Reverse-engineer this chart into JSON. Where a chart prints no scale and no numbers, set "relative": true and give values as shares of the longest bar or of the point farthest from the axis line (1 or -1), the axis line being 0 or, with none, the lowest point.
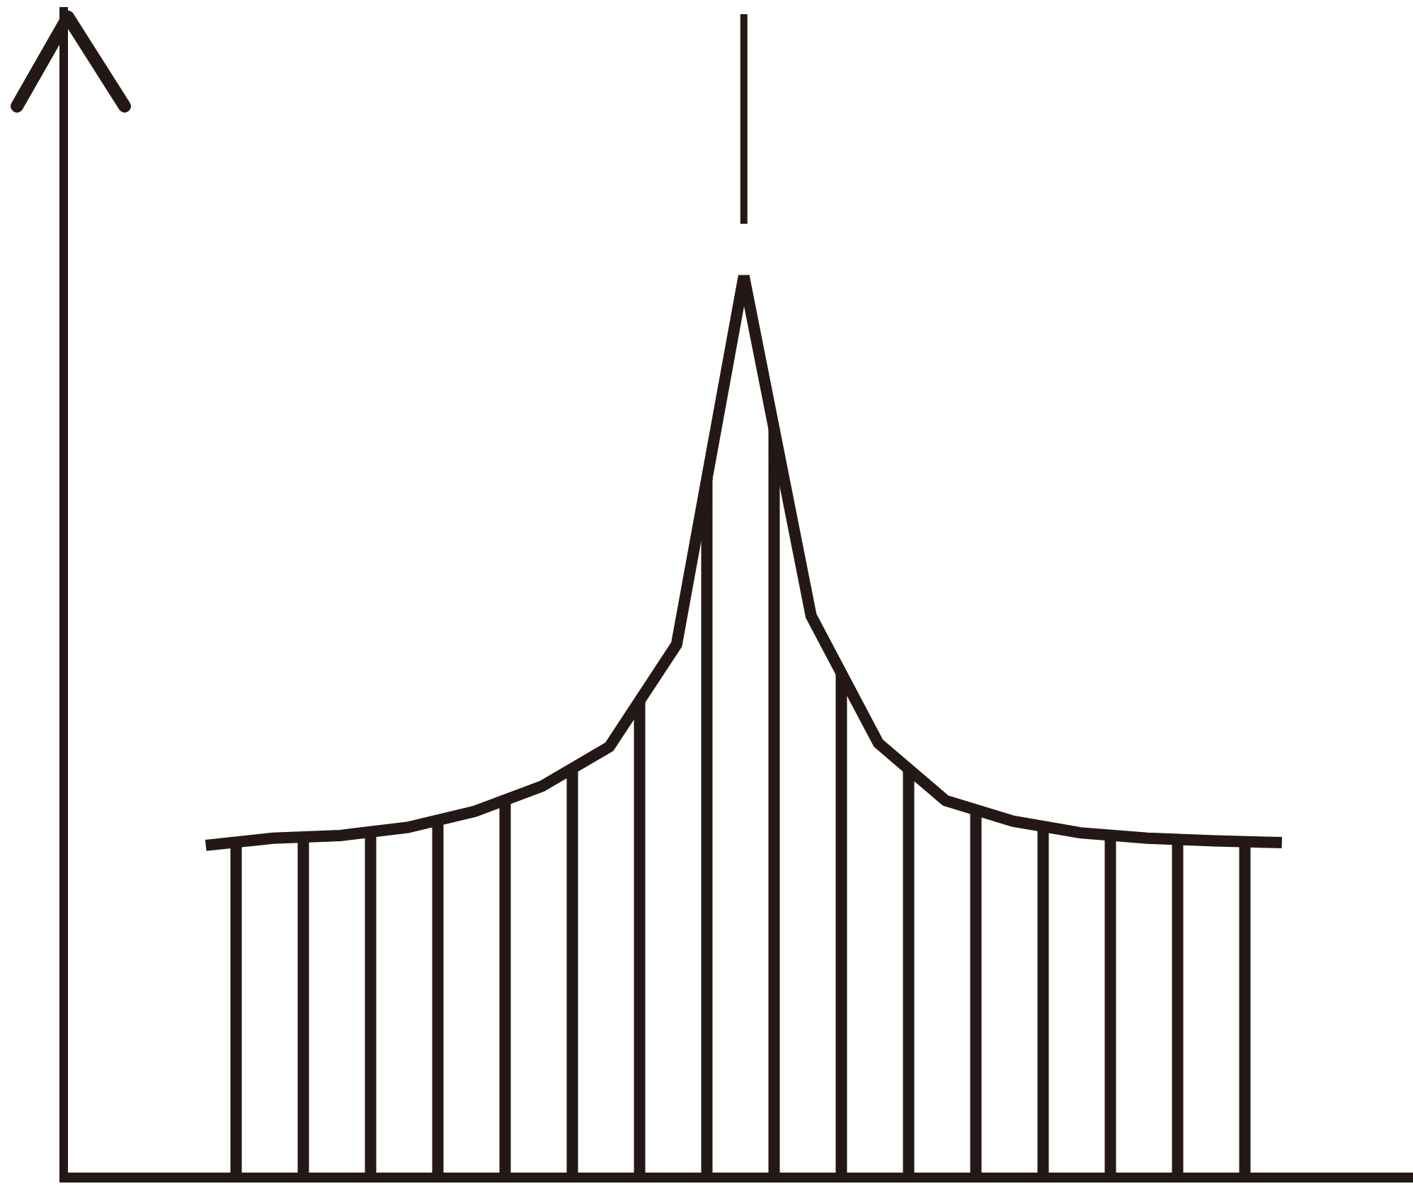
{
  "chart_data": {
    "type": "area",
    "relative": true,
    "marker": "none",
    "categories": [
      null,
      null,
      null,
      null,
      null,
      null,
      null,
      null,
      null,
      null,
      null,
      null,
      null,
      null,
      null,
      null,
      null
    ],
    "series": [
      {
        "color": "#231815",
        "values": [
          0.365,
          0.373,
          0.376,
          0.385,
          0.403,
          0.431,
          0.475,
          0.589,
          1,
          0.621,
          0.479,
          0.415,
          0.392,
          0.379,
          0.373,
          0.37,
          0.368
        ]
      }
    ]
  }
}
